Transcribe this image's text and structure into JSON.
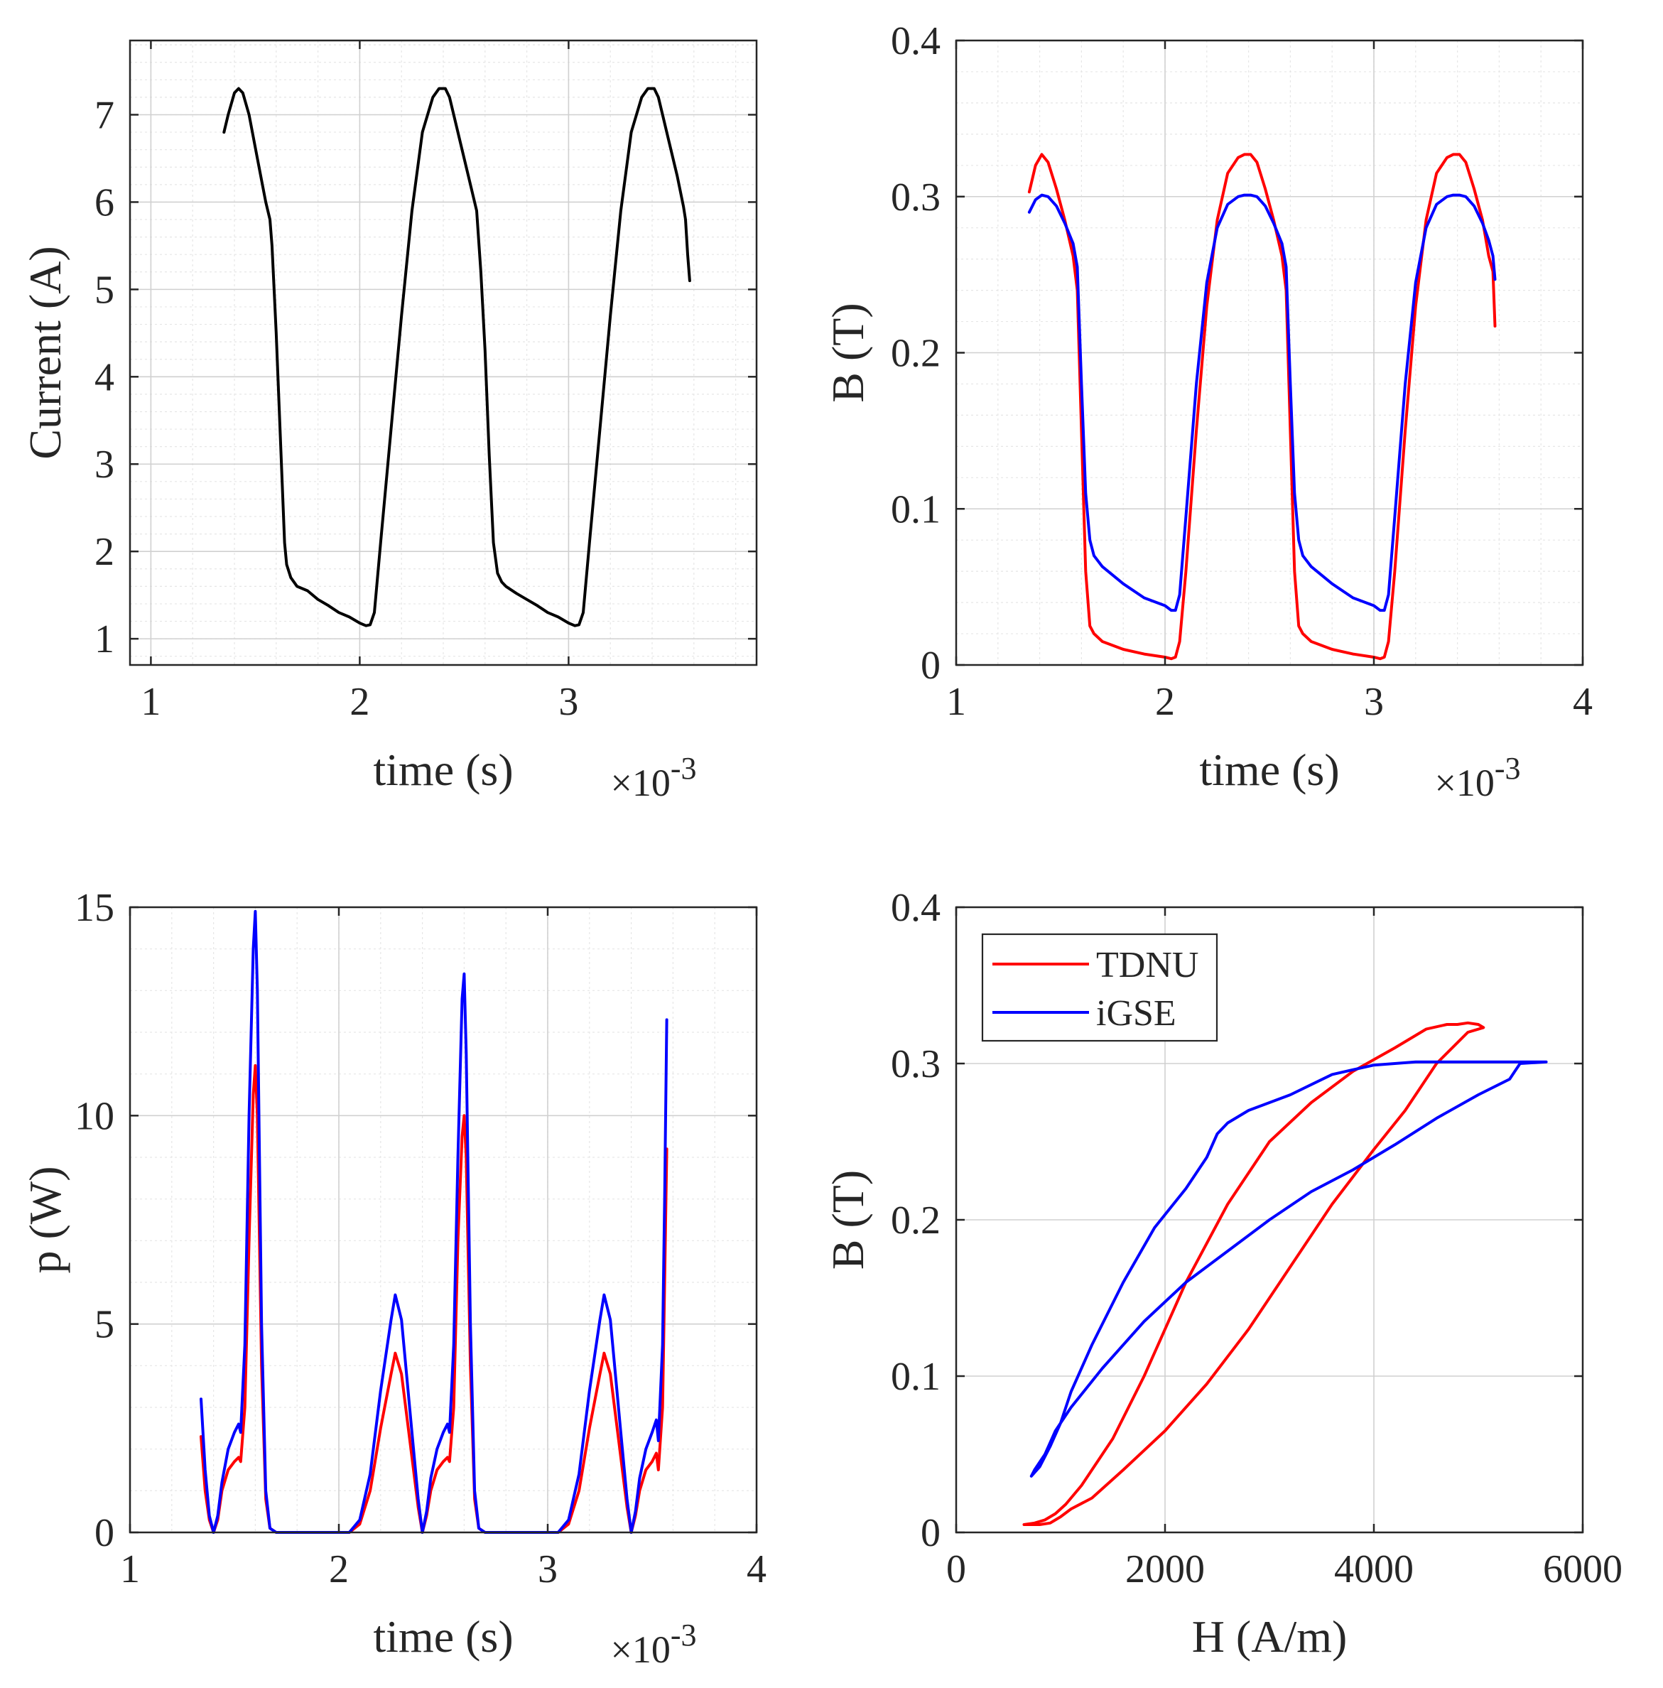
{
  "figure": {
    "type": "multi-panel"
  },
  "chart_data": [
    {
      "id": "current",
      "type": "line",
      "xlabel": "time (s)",
      "ylabel": "Current (A)",
      "x_exponent": {
        "times": "×10",
        "power": "-3"
      },
      "xlim": [
        0.9,
        3.9
      ],
      "ylim": [
        0.7,
        7.85
      ],
      "xticks": [
        1,
        2,
        3
      ],
      "yticks": [
        1,
        2,
        3,
        4,
        5,
        6,
        7
      ],
      "grid": true,
      "minor_grid": true,
      "series": [
        {
          "name": "Current",
          "color": "#000000",
          "x": [
            1.35,
            1.37,
            1.4,
            1.42,
            1.44,
            1.47,
            1.51,
            1.55,
            1.57,
            1.58,
            1.6,
            1.62,
            1.64,
            1.65,
            1.67,
            1.7,
            1.75,
            1.8,
            1.85,
            1.9,
            1.95,
            2.0,
            2.03,
            2.05,
            2.07,
            2.1,
            2.15,
            2.2,
            2.25,
            2.3,
            2.35,
            2.38,
            2.41,
            2.43,
            2.45,
            2.48,
            2.52,
            2.56,
            2.58,
            2.6,
            2.62,
            2.64,
            2.66,
            2.68,
            2.7,
            2.75,
            2.8,
            2.85,
            2.9,
            2.95,
            3.0,
            3.03,
            3.05,
            3.07,
            3.1,
            3.15,
            3.2,
            3.25,
            3.3,
            3.35,
            3.38,
            3.41,
            3.43,
            3.45,
            3.48,
            3.52,
            3.55,
            3.56,
            3.57,
            3.58
          ],
          "y": [
            6.8,
            7.0,
            7.25,
            7.3,
            7.25,
            7.0,
            6.5,
            6.0,
            5.8,
            5.5,
            4.5,
            3.3,
            2.1,
            1.85,
            1.7,
            1.6,
            1.55,
            1.45,
            1.38,
            1.3,
            1.25,
            1.18,
            1.15,
            1.16,
            1.3,
            2.1,
            3.4,
            4.7,
            5.9,
            6.8,
            7.2,
            7.3,
            7.3,
            7.2,
            7.0,
            6.7,
            6.3,
            5.9,
            5.2,
            4.3,
            3.1,
            2.1,
            1.75,
            1.65,
            1.6,
            1.52,
            1.45,
            1.38,
            1.3,
            1.25,
            1.18,
            1.15,
            1.16,
            1.3,
            2.1,
            3.4,
            4.7,
            5.9,
            6.8,
            7.2,
            7.3,
            7.3,
            7.2,
            7.0,
            6.7,
            6.3,
            5.95,
            5.8,
            5.4,
            5.1
          ]
        }
      ]
    },
    {
      "id": "flux-density-time",
      "type": "line",
      "xlabel": "time (s)",
      "ylabel": "B (T)",
      "x_exponent": {
        "times": "×10",
        "power": "-3"
      },
      "xlim": [
        1,
        4
      ],
      "ylim": [
        0,
        0.4
      ],
      "xticks": [
        1,
        2,
        3,
        4
      ],
      "yticks": [
        0,
        0.1,
        0.2,
        0.3,
        0.4
      ],
      "ytick_labels": [
        "0",
        "0.1",
        "0.2",
        "0.3",
        "0.4"
      ],
      "grid": true,
      "minor_grid": true,
      "series": [
        {
          "name": "TDNU",
          "color": "#ff0000",
          "x": [
            1.35,
            1.38,
            1.41,
            1.44,
            1.48,
            1.52,
            1.56,
            1.58,
            1.6,
            1.62,
            1.64,
            1.66,
            1.7,
            1.8,
            1.9,
            2.0,
            2.03,
            2.05,
            2.07,
            2.1,
            2.15,
            2.2,
            2.25,
            2.3,
            2.35,
            2.38,
            2.41,
            2.44,
            2.48,
            2.52,
            2.56,
            2.58,
            2.6,
            2.62,
            2.64,
            2.66,
            2.7,
            2.8,
            2.9,
            3.0,
            3.03,
            3.05,
            3.07,
            3.1,
            3.15,
            3.2,
            3.25,
            3.3,
            3.35,
            3.38,
            3.41,
            3.44,
            3.48,
            3.52,
            3.55,
            3.57,
            3.58
          ],
          "y": [
            0.303,
            0.32,
            0.327,
            0.322,
            0.305,
            0.285,
            0.262,
            0.24,
            0.15,
            0.06,
            0.025,
            0.02,
            0.015,
            0.01,
            0.007,
            0.005,
            0.004,
            0.005,
            0.015,
            0.06,
            0.15,
            0.23,
            0.285,
            0.315,
            0.325,
            0.327,
            0.327,
            0.322,
            0.305,
            0.285,
            0.262,
            0.24,
            0.15,
            0.06,
            0.025,
            0.02,
            0.015,
            0.01,
            0.007,
            0.005,
            0.004,
            0.005,
            0.015,
            0.06,
            0.15,
            0.23,
            0.285,
            0.315,
            0.325,
            0.327,
            0.327,
            0.322,
            0.305,
            0.285,
            0.262,
            0.252,
            0.217
          ]
        },
        {
          "name": "iGSE",
          "color": "#0000ff",
          "x": [
            1.35,
            1.38,
            1.41,
            1.44,
            1.48,
            1.52,
            1.56,
            1.58,
            1.6,
            1.62,
            1.64,
            1.66,
            1.7,
            1.8,
            1.9,
            2.0,
            2.03,
            2.05,
            2.07,
            2.1,
            2.15,
            2.2,
            2.25,
            2.3,
            2.35,
            2.38,
            2.41,
            2.44,
            2.48,
            2.52,
            2.56,
            2.58,
            2.6,
            2.62,
            2.64,
            2.66,
            2.7,
            2.8,
            2.9,
            3.0,
            3.03,
            3.05,
            3.07,
            3.1,
            3.15,
            3.2,
            3.25,
            3.3,
            3.35,
            3.38,
            3.41,
            3.44,
            3.48,
            3.52,
            3.55,
            3.57,
            3.58
          ],
          "y": [
            0.29,
            0.298,
            0.301,
            0.3,
            0.294,
            0.283,
            0.27,
            0.255,
            0.18,
            0.11,
            0.08,
            0.07,
            0.063,
            0.052,
            0.043,
            0.038,
            0.035,
            0.035,
            0.045,
            0.095,
            0.18,
            0.245,
            0.28,
            0.295,
            0.3,
            0.301,
            0.301,
            0.3,
            0.294,
            0.283,
            0.27,
            0.255,
            0.18,
            0.11,
            0.08,
            0.07,
            0.063,
            0.052,
            0.043,
            0.038,
            0.035,
            0.035,
            0.045,
            0.095,
            0.18,
            0.245,
            0.28,
            0.295,
            0.3,
            0.301,
            0.301,
            0.3,
            0.294,
            0.283,
            0.272,
            0.262,
            0.247
          ]
        }
      ]
    },
    {
      "id": "power",
      "type": "line",
      "xlabel": "time (s)",
      "ylabel": "p (W)",
      "x_exponent": {
        "times": "×10",
        "power": "-3"
      },
      "xlim": [
        1,
        4
      ],
      "ylim": [
        0,
        15
      ],
      "xticks": [
        1,
        2,
        3,
        4
      ],
      "yticks": [
        0,
        5,
        10,
        15
      ],
      "grid": true,
      "minor_grid": true,
      "series": [
        {
          "name": "TDNU",
          "color": "#ff0000",
          "x": [
            1.34,
            1.36,
            1.38,
            1.4,
            1.42,
            1.44,
            1.47,
            1.5,
            1.52,
            1.53,
            1.55,
            1.57,
            1.59,
            1.6,
            1.61,
            1.63,
            1.65,
            1.67,
            1.7,
            1.8,
            1.9,
            2.0,
            2.05,
            2.1,
            2.15,
            2.2,
            2.25,
            2.27,
            2.3,
            2.35,
            2.38,
            2.4,
            2.42,
            2.44,
            2.47,
            2.5,
            2.52,
            2.53,
            2.55,
            2.57,
            2.59,
            2.6,
            2.61,
            2.63,
            2.65,
            2.67,
            2.7,
            2.8,
            2.9,
            3.0,
            3.05,
            3.1,
            3.15,
            3.2,
            3.25,
            3.27,
            3.3,
            3.35,
            3.38,
            3.4,
            3.42,
            3.44,
            3.47,
            3.5,
            3.52,
            3.53,
            3.55,
            3.56,
            3.57
          ],
          "y": [
            2.3,
            1.0,
            0.3,
            0.0,
            0.3,
            1.0,
            1.5,
            1.7,
            1.8,
            1.7,
            3.0,
            7.0,
            10.5,
            11.2,
            10.0,
            4.0,
            0.8,
            0.1,
            0.0,
            0.0,
            0.0,
            0.0,
            0.0,
            0.2,
            1.0,
            2.5,
            3.8,
            4.3,
            3.8,
            1.8,
            0.6,
            0.0,
            0.4,
            1.0,
            1.5,
            1.7,
            1.8,
            1.7,
            3.0,
            7.0,
            9.5,
            10.0,
            9.0,
            4.0,
            0.8,
            0.1,
            0.0,
            0.0,
            0.0,
            0.0,
            0.0,
            0.2,
            1.0,
            2.5,
            3.8,
            4.3,
            3.8,
            1.8,
            0.6,
            0.0,
            0.4,
            1.0,
            1.5,
            1.7,
            1.9,
            1.5,
            3.0,
            6.0,
            9.2
          ]
        },
        {
          "name": "iGSE",
          "color": "#0000ff",
          "x": [
            1.34,
            1.36,
            1.38,
            1.4,
            1.42,
            1.44,
            1.47,
            1.5,
            1.52,
            1.53,
            1.55,
            1.57,
            1.59,
            1.6,
            1.61,
            1.63,
            1.65,
            1.67,
            1.7,
            1.8,
            1.9,
            2.0,
            2.05,
            2.1,
            2.15,
            2.2,
            2.25,
            2.27,
            2.3,
            2.35,
            2.38,
            2.4,
            2.42,
            2.44,
            2.47,
            2.5,
            2.52,
            2.53,
            2.55,
            2.57,
            2.59,
            2.6,
            2.61,
            2.63,
            2.65,
            2.67,
            2.7,
            2.8,
            2.9,
            3.0,
            3.05,
            3.1,
            3.15,
            3.2,
            3.25,
            3.27,
            3.3,
            3.35,
            3.38,
            3.4,
            3.42,
            3.44,
            3.47,
            3.5,
            3.52,
            3.53,
            3.55,
            3.56,
            3.57
          ],
          "y": [
            3.2,
            1.5,
            0.4,
            0.0,
            0.4,
            1.2,
            2.0,
            2.4,
            2.6,
            2.4,
            4.5,
            10.0,
            14.0,
            14.9,
            13.0,
            5.0,
            1.0,
            0.1,
            0.0,
            0.0,
            0.0,
            0.0,
            0.0,
            0.3,
            1.4,
            3.4,
            5.1,
            5.7,
            5.1,
            2.4,
            0.8,
            0.0,
            0.5,
            1.3,
            2.0,
            2.4,
            2.6,
            2.4,
            4.5,
            9.0,
            12.8,
            13.4,
            11.5,
            5.0,
            1.0,
            0.1,
            0.0,
            0.0,
            0.0,
            0.0,
            0.0,
            0.3,
            1.4,
            3.4,
            5.1,
            5.7,
            5.1,
            2.4,
            0.8,
            0.0,
            0.5,
            1.3,
            2.0,
            2.4,
            2.7,
            2.2,
            4.5,
            8.0,
            12.3
          ]
        }
      ]
    },
    {
      "id": "bh-loop",
      "type": "line",
      "xlabel": "H (A/m)",
      "ylabel": "B (T)",
      "xlim": [
        0,
        6000
      ],
      "ylim": [
        0,
        0.4
      ],
      "xticks": [
        0,
        2000,
        4000,
        6000
      ],
      "yticks": [
        0,
        0.1,
        0.2,
        0.3,
        0.4
      ],
      "ytick_labels": [
        "0",
        "0.1",
        "0.2",
        "0.3",
        "0.4"
      ],
      "grid": true,
      "minor_grid": false,
      "legend": {
        "position": "top-left",
        "entries": [
          "TDNU",
          "iGSE"
        ]
      },
      "series": [
        {
          "name": "TDNU",
          "color": "#ff0000",
          "x": [
            650,
            750,
            850,
            950,
            1050,
            1200,
            1500,
            1800,
            2200,
            2600,
            3000,
            3400,
            3800,
            4200,
            4500,
            4700,
            4800,
            4900,
            5000,
            5050,
            4900,
            4600,
            4300,
            4000,
            3600,
            3200,
            2800,
            2400,
            2000,
            1600,
            1300,
            1100,
            1000,
            950,
            900,
            800,
            700,
            650
          ],
          "y": [
            0.005,
            0.006,
            0.008,
            0.012,
            0.018,
            0.03,
            0.06,
            0.1,
            0.16,
            0.21,
            0.25,
            0.275,
            0.295,
            0.31,
            0.322,
            0.325,
            0.325,
            0.326,
            0.325,
            0.323,
            0.32,
            0.3,
            0.27,
            0.245,
            0.21,
            0.17,
            0.13,
            0.095,
            0.065,
            0.04,
            0.022,
            0.015,
            0.01,
            0.008,
            0.006,
            0.005,
            0.005,
            0.005
          ]
        },
        {
          "name": "iGSE",
          "color": "#0000ff",
          "x": [
            720,
            800,
            900,
            1000,
            1100,
            1300,
            1600,
            1900,
            2200,
            2400,
            2500,
            2600,
            2800,
            3200,
            3600,
            4000,
            4400,
            4800,
            5200,
            5400,
            5650,
            5400,
            5350,
            5300,
            5000,
            4600,
            4200,
            3800,
            3400,
            3000,
            2600,
            2200,
            1800,
            1400,
            1100,
            950,
            850,
            750,
            720
          ],
          "y": [
            0.036,
            0.042,
            0.055,
            0.07,
            0.09,
            0.12,
            0.16,
            0.195,
            0.22,
            0.24,
            0.255,
            0.262,
            0.27,
            0.28,
            0.293,
            0.299,
            0.301,
            0.301,
            0.301,
            0.301,
            0.301,
            0.3,
            0.295,
            0.29,
            0.28,
            0.265,
            0.248,
            0.232,
            0.218,
            0.2,
            0.18,
            0.16,
            0.135,
            0.105,
            0.08,
            0.065,
            0.05,
            0.04,
            0.036
          ]
        }
      ]
    }
  ]
}
